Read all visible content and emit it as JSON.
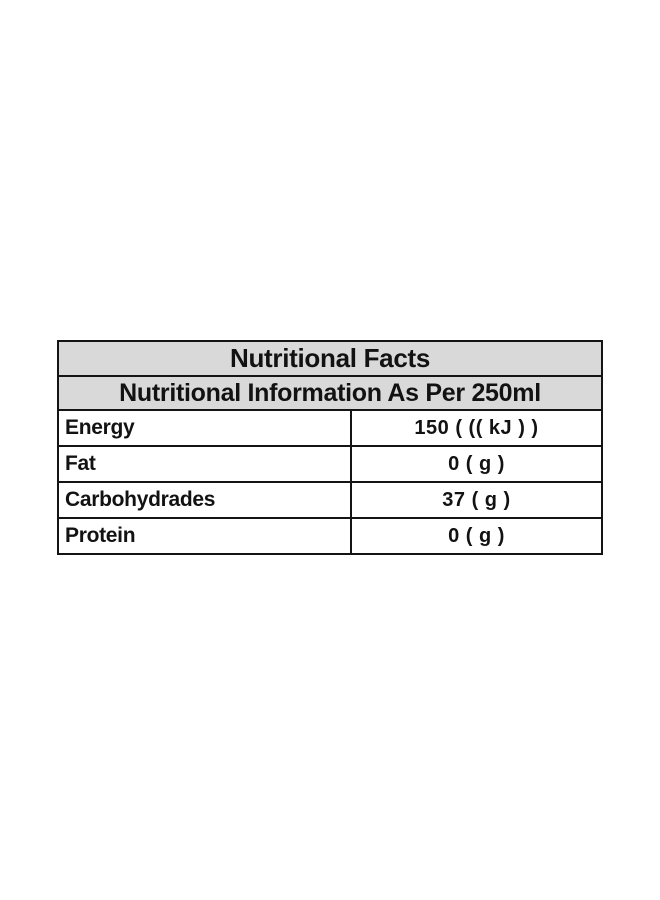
{
  "page": {
    "background_color": "#ffffff"
  },
  "nutrition_table": {
    "title": "Nutritional Facts",
    "subtitle": "Nutritional Information As Per 250ml",
    "header_background_color": "#d9d9d9",
    "border_color": "#141414",
    "text_color": "#121212",
    "rows": [
      {
        "label": "Energy",
        "value": "150 ( (( kJ ) )"
      },
      {
        "label": "Fat",
        "value": "0 ( g )"
      },
      {
        "label": "Carbohydrades",
        "value": "37 ( g )"
      },
      {
        "label": "Protein",
        "value": "0 ( g )"
      }
    ]
  }
}
